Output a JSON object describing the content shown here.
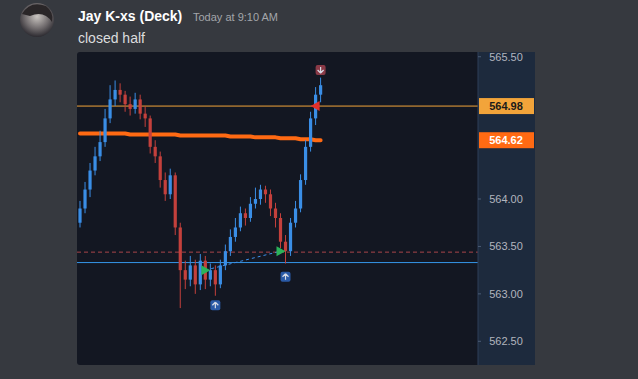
{
  "message": {
    "author": "Jay K-xs (Deck)",
    "timestamp": "Today at 9:10 AM",
    "text": "closed half"
  },
  "chart_data": {
    "type": "candlestick",
    "categories": [
      null,
      null,
      null,
      null,
      null,
      null,
      null,
      null,
      null,
      null,
      null,
      null,
      null,
      null,
      null,
      null,
      null,
      null,
      null,
      null,
      null,
      null,
      null,
      null,
      null,
      null,
      null,
      null,
      null,
      null,
      null,
      null,
      null,
      null,
      null,
      null,
      null,
      null,
      null,
      null,
      null,
      null,
      null,
      null,
      null,
      null,
      null,
      null,
      null
    ],
    "ylim": [
      562.25,
      565.55
    ],
    "yticks": [
      {
        "value": 562.5,
        "label": "562.50"
      },
      {
        "value": 563,
        "label": "563.00"
      },
      {
        "value": 563.5,
        "label": "563.50"
      },
      {
        "value": 564,
        "label": "564.00"
      },
      {
        "value": 565.5,
        "label": "565.50"
      }
    ],
    "grid": false,
    "tick_labels": "y",
    "series": [
      {
        "type": "candlestick",
        "open": [
          563.75,
          563.9,
          564.1,
          564.3,
          564.45,
          564.6,
          564.85,
          565.05,
          565.15,
          565.1,
          565.0,
          564.95,
          565.05,
          564.9,
          564.85,
          564.55,
          564.45,
          564.2,
          564.05,
          564.25,
          563.7,
          563.25,
          563.15,
          563.3,
          563.1,
          563.35,
          563.15,
          563.25,
          563.1,
          563.3,
          563.45,
          563.6,
          563.7,
          563.85,
          563.8,
          563.95,
          564.0,
          564.1,
          564.05,
          563.9,
          563.8,
          563.55,
          563.45,
          563.75,
          563.9,
          564.2,
          564.55,
          564.85,
          565.1
        ],
        "high": [
          563.98,
          564.18,
          564.38,
          564.55,
          564.72,
          564.95,
          565.2,
          565.25,
          565.22,
          565.14,
          565.08,
          565.12,
          565.1,
          564.98,
          564.88,
          564.62,
          564.5,
          564.28,
          564.32,
          564.28,
          563.75,
          563.35,
          563.4,
          563.36,
          563.42,
          563.4,
          563.32,
          563.3,
          563.36,
          563.52,
          563.68,
          563.8,
          563.92,
          563.9,
          564.02,
          564.12,
          564.15,
          564.14,
          564.1,
          563.96,
          563.85,
          563.62,
          563.8,
          563.98,
          564.26,
          564.62,
          564.92,
          565.18,
          565.28
        ],
        "low": [
          563.7,
          563.85,
          564.02,
          564.25,
          564.4,
          564.55,
          564.8,
          564.98,
          565.02,
          564.92,
          564.88,
          564.9,
          564.84,
          564.76,
          564.48,
          564.38,
          564.12,
          563.98,
          564.0,
          563.62,
          562.85,
          563.05,
          563.08,
          563.0,
          563.04,
          563.05,
          563.08,
          562.98,
          563.06,
          563.25,
          563.4,
          563.55,
          563.66,
          563.72,
          563.76,
          563.9,
          563.94,
          563.96,
          563.82,
          563.7,
          563.48,
          563.32,
          563.4,
          563.7,
          563.86,
          564.15,
          564.5,
          564.78,
          565.02
        ],
        "close": [
          563.9,
          564.1,
          564.3,
          564.45,
          564.6,
          564.85,
          565.05,
          565.15,
          565.1,
          565.0,
          564.95,
          565.05,
          564.9,
          564.85,
          564.55,
          564.45,
          564.2,
          564.05,
          564.25,
          563.7,
          563.25,
          563.15,
          563.3,
          563.1,
          563.35,
          563.15,
          563.25,
          563.1,
          563.3,
          563.45,
          563.6,
          563.7,
          563.85,
          563.8,
          563.95,
          564.0,
          564.1,
          564.05,
          563.9,
          563.8,
          563.55,
          563.45,
          563.75,
          563.9,
          564.2,
          564.55,
          564.85,
          565.1,
          565.2
        ]
      },
      {
        "type": "line",
        "color": "#ff6a13",
        "price_label": "564.62",
        "values": [
          564.69,
          564.69,
          564.69,
          564.69,
          564.69,
          564.69,
          564.69,
          564.69,
          564.69,
          564.69,
          564.68,
          564.68,
          564.68,
          564.68,
          564.68,
          564.68,
          564.68,
          564.68,
          564.68,
          564.68,
          564.67,
          564.67,
          564.67,
          564.67,
          564.67,
          564.67,
          564.67,
          564.67,
          564.67,
          564.67,
          564.66,
          564.66,
          564.66,
          564.66,
          564.66,
          564.65,
          564.65,
          564.65,
          564.65,
          564.65,
          564.64,
          564.64,
          564.64,
          564.64,
          564.63,
          564.63,
          564.63,
          564.62,
          564.62
        ]
      },
      {
        "type": "scatter",
        "marker": "triangle-right",
        "color": "#2bb35a",
        "values": [
          null,
          null,
          null,
          null,
          null,
          null,
          null,
          null,
          null,
          null,
          null,
          null,
          null,
          null,
          null,
          null,
          null,
          null,
          null,
          null,
          null,
          null,
          null,
          null,
          null,
          563.25,
          null,
          null,
          null,
          null,
          null,
          null,
          null,
          null,
          null,
          null,
          null,
          null,
          null,
          null,
          563.45,
          null,
          null,
          null,
          null,
          null,
          null,
          null,
          null
        ]
      },
      {
        "type": "scatter",
        "marker": "triangle-left",
        "color": "#e3302b",
        "values": [
          null,
          null,
          null,
          null,
          null,
          null,
          null,
          null,
          null,
          null,
          null,
          null,
          null,
          null,
          null,
          null,
          null,
          null,
          null,
          null,
          null,
          null,
          null,
          null,
          null,
          null,
          null,
          null,
          null,
          null,
          null,
          null,
          null,
          null,
          null,
          null,
          null,
          null,
          null,
          null,
          null,
          null,
          null,
          null,
          null,
          null,
          null,
          564.98,
          null
        ]
      },
      {
        "type": "scatter",
        "marker": "arrow-up-badge",
        "color": "#2a5aa6",
        "values": [
          null,
          null,
          null,
          null,
          null,
          null,
          null,
          null,
          null,
          null,
          null,
          null,
          null,
          null,
          null,
          null,
          null,
          null,
          null,
          null,
          null,
          null,
          null,
          null,
          null,
          null,
          null,
          562.88,
          null,
          null,
          null,
          null,
          null,
          null,
          null,
          null,
          null,
          null,
          null,
          null,
          null,
          563.18,
          null,
          null,
          null,
          null,
          null,
          null,
          null
        ]
      },
      {
        "type": "scatter",
        "marker": "arrow-down-badge",
        "color": "#8a3a47",
        "values": [
          null,
          null,
          null,
          null,
          null,
          null,
          null,
          null,
          null,
          null,
          null,
          null,
          null,
          null,
          null,
          null,
          null,
          null,
          null,
          null,
          null,
          null,
          null,
          null,
          null,
          null,
          null,
          null,
          null,
          null,
          null,
          null,
          null,
          null,
          null,
          null,
          null,
          null,
          null,
          null,
          null,
          null,
          null,
          null,
          null,
          null,
          null,
          null,
          565.36
        ]
      }
    ],
    "reference_lines": [
      {
        "value": 564.98,
        "color": "#f2a43a",
        "label": "564.98",
        "line_style": "solid"
      },
      {
        "value": 563.33,
        "color": "#3596e8",
        "line_style": "solid"
      },
      {
        "value": 563.44,
        "color": "#a8454a",
        "line_style": "dashed"
      }
    ],
    "trend_lines": [
      {
        "from_index": 25,
        "from_value": 563.25,
        "to_index": 40,
        "to_value": 563.45,
        "color": "#3d8fe8",
        "line_style": "dashed"
      }
    ]
  }
}
